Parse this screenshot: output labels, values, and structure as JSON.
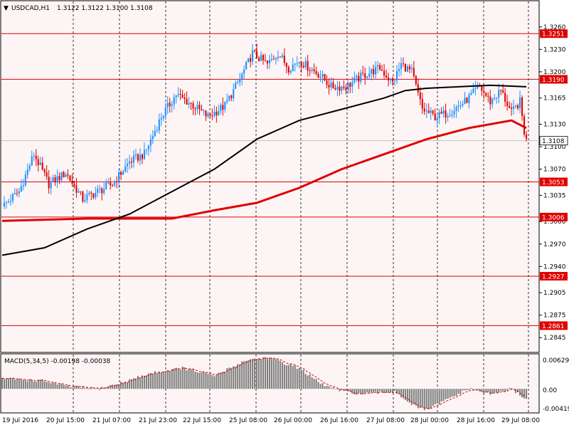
{
  "header": {
    "symbol_label": "USDCAD,H1",
    "ohlc_label": "1.3122 1.3122 1.3100 1.3108"
  },
  "macd": {
    "label": "MACD(5,34,5) -0.00198 -0.00038",
    "ticks": [
      "0.00629",
      "0.00",
      "-0.00419"
    ]
  },
  "colors": {
    "background": "#fdf5f5",
    "bull_candle": "#1e90ff",
    "bear_candle": "#e00000",
    "ma_fast": "#000000",
    "ma_slow": "#e00000",
    "level_line": "#e00000",
    "histogram": "#808080",
    "signal": "#e00000"
  },
  "chart_data": {
    "type": "candlestick",
    "timeframe": "H1",
    "ylim": [
      1.283,
      1.3275
    ],
    "y_ticks": [
      "1.3260",
      "1.3230",
      "1.3200",
      "1.3165",
      "1.3130",
      "1.3100",
      "1.3070",
      "1.3035",
      "1.3000",
      "1.2970",
      "1.2940",
      "1.2905",
      "1.2875",
      "1.2845"
    ],
    "x_labels": [
      "19 Jul 2016",
      "20 Jul 15:00",
      "21 Jul 07:00",
      "21 Jul 23:00",
      "22 Jul 15:00",
      "25 Jul 08:00",
      "26 Jul 00:00",
      "26 Jul 16:00",
      "27 Jul 08:00",
      "28 Jul 00:00",
      "28 Jul 16:00",
      "29 Jul 08:00"
    ],
    "current_price": "1.3108",
    "price_levels": [
      "1.3251",
      "1.3190",
      "1.3053",
      "1.3006",
      "1.2927",
      "1.2861"
    ],
    "close_path": [
      [
        0,
        1.302
      ],
      [
        8,
        1.304
      ],
      [
        15,
        1.309
      ],
      [
        22,
        1.305
      ],
      [
        30,
        1.3065
      ],
      [
        38,
        1.303
      ],
      [
        45,
        1.304
      ],
      [
        52,
        1.305
      ],
      [
        60,
        1.308
      ],
      [
        67,
        1.309
      ],
      [
        75,
        1.314
      ],
      [
        82,
        1.317
      ],
      [
        90,
        1.3155
      ],
      [
        97,
        1.314
      ],
      [
        105,
        1.3155
      ],
      [
        112,
        1.319
      ],
      [
        118,
        1.3225
      ],
      [
        125,
        1.321
      ],
      [
        130,
        1.3225
      ],
      [
        135,
        1.3205
      ],
      [
        140,
        1.3215
      ],
      [
        145,
        1.3205
      ],
      [
        150,
        1.3195
      ],
      [
        155,
        1.318
      ],
      [
        162,
        1.318
      ],
      [
        170,
        1.3195
      ],
      [
        178,
        1.3205
      ],
      [
        184,
        1.3185
      ],
      [
        188,
        1.321
      ],
      [
        193,
        1.32
      ],
      [
        198,
        1.315
      ],
      [
        204,
        1.314
      ],
      [
        210,
        1.3145
      ],
      [
        218,
        1.316
      ],
      [
        225,
        1.318
      ],
      [
        230,
        1.316
      ],
      [
        235,
        1.3175
      ],
      [
        240,
        1.3145
      ],
      [
        244,
        1.316
      ],
      [
        246,
        1.312
      ],
      [
        247,
        1.3108
      ]
    ],
    "ma_fast": [
      [
        0,
        1.2955
      ],
      [
        20,
        1.2965
      ],
      [
        40,
        1.299
      ],
      [
        60,
        1.301
      ],
      [
        80,
        1.304
      ],
      [
        100,
        1.307
      ],
      [
        120,
        1.311
      ],
      [
        140,
        1.3135
      ],
      [
        160,
        1.315
      ],
      [
        180,
        1.3165
      ],
      [
        190,
        1.3175
      ],
      [
        200,
        1.3178
      ],
      [
        215,
        1.318
      ],
      [
        230,
        1.3182
      ],
      [
        247,
        1.318
      ]
    ],
    "ma_slow": [
      [
        0,
        1.3001
      ],
      [
        40,
        1.3004
      ],
      [
        80,
        1.3004
      ],
      [
        100,
        1.3015
      ],
      [
        120,
        1.3025
      ],
      [
        140,
        1.3045
      ],
      [
        160,
        1.307
      ],
      [
        180,
        1.309
      ],
      [
        200,
        1.311
      ],
      [
        220,
        1.3125
      ],
      [
        240,
        1.3135
      ],
      [
        247,
        1.3125
      ]
    ],
    "macd_path": [
      [
        0,
        0.002
      ],
      [
        20,
        0.0015
      ],
      [
        30,
        0.0005
      ],
      [
        45,
        0.0
      ],
      [
        55,
        0.001
      ],
      [
        70,
        0.003
      ],
      [
        85,
        0.004
      ],
      [
        100,
        0.0025
      ],
      [
        115,
        0.0055
      ],
      [
        125,
        0.006
      ],
      [
        140,
        0.004
      ],
      [
        150,
        0.001
      ],
      [
        160,
        -0.0005
      ],
      [
        170,
        -0.001
      ],
      [
        185,
        -0.0005
      ],
      [
        195,
        -0.0035
      ],
      [
        200,
        -0.004
      ],
      [
        210,
        -0.002
      ],
      [
        220,
        0.0
      ],
      [
        230,
        -0.001
      ],
      [
        240,
        0.0
      ],
      [
        247,
        -0.002
      ]
    ]
  }
}
